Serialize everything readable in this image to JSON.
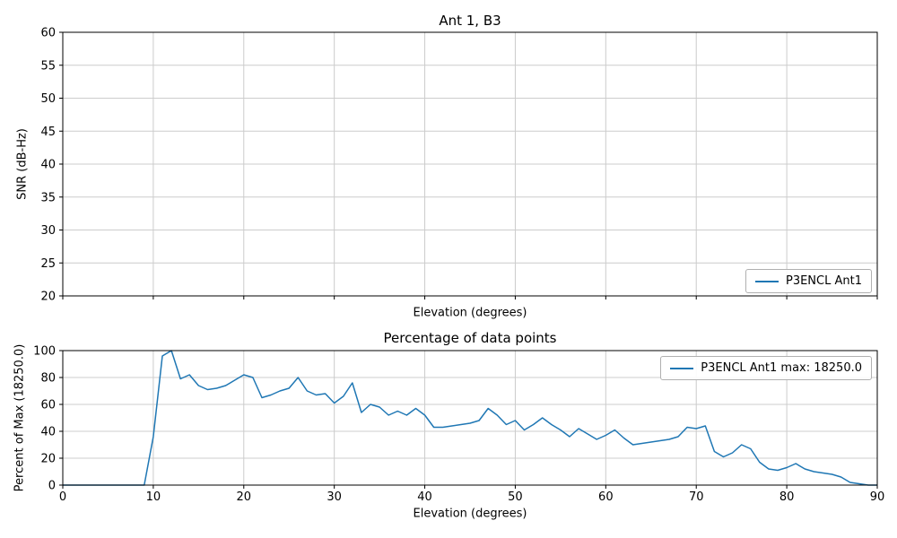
{
  "figure": {
    "background_color": "#ffffff",
    "line_color": "#1f77b4",
    "grid_color": "#cccccc",
    "frame_color": "#000000"
  },
  "chart_data": [
    {
      "type": "line",
      "title": "Ant 1, B3",
      "xlabel": "Elevation (degrees)",
      "ylabel": "SNR (dB-Hz)",
      "xlim": [
        0,
        90
      ],
      "ylim": [
        20,
        60
      ],
      "xticks": [
        0,
        10,
        20,
        30,
        40,
        50,
        60,
        70,
        80,
        90
      ],
      "yticks": [
        20,
        25,
        30,
        35,
        40,
        45,
        50,
        55,
        60
      ],
      "show_xtick_labels": false,
      "grid": true,
      "legend": {
        "position": "lower right",
        "entries": [
          {
            "label": "P3ENCL Ant1",
            "color": "#1f77b4"
          }
        ]
      },
      "series": [
        {
          "name": "P3ENCL Ant1",
          "color": "#1f77b4",
          "x": [],
          "y": []
        }
      ]
    },
    {
      "type": "line",
      "title": "Percentage of data points",
      "xlabel": "Elevation (degrees)",
      "ylabel": "Percent of Max (18250.0)",
      "max_value": 18250.0,
      "xlim": [
        0,
        90
      ],
      "ylim": [
        0,
        100
      ],
      "xticks": [
        0,
        10,
        20,
        30,
        40,
        50,
        60,
        70,
        80,
        90
      ],
      "yticks": [
        0,
        20,
        40,
        60,
        80,
        100
      ],
      "show_xtick_labels": true,
      "grid": true,
      "legend": {
        "position": "upper right",
        "entries": [
          {
            "label": "P3ENCL Ant1 max: 18250.0",
            "color": "#1f77b4"
          }
        ]
      },
      "series": [
        {
          "name": "P3ENCL Ant1",
          "color": "#1f77b4",
          "x": [
            0,
            1,
            2,
            3,
            4,
            5,
            6,
            7,
            8,
            9,
            10,
            11,
            12,
            13,
            14,
            15,
            16,
            17,
            18,
            19,
            20,
            21,
            22,
            23,
            24,
            25,
            26,
            27,
            28,
            29,
            30,
            31,
            32,
            33,
            34,
            35,
            36,
            37,
            38,
            39,
            40,
            41,
            42,
            43,
            44,
            45,
            46,
            47,
            48,
            49,
            50,
            51,
            52,
            53,
            54,
            55,
            56,
            57,
            58,
            59,
            60,
            61,
            62,
            63,
            64,
            65,
            66,
            67,
            68,
            69,
            70,
            71,
            72,
            73,
            74,
            75,
            76,
            77,
            78,
            79,
            80,
            81,
            82,
            83,
            84,
            85,
            86,
            87,
            88,
            89,
            90
          ],
          "y": [
            0,
            0,
            0,
            0,
            0,
            0,
            0,
            0,
            0,
            0,
            36,
            96,
            100,
            79,
            82,
            74,
            71,
            72,
            74,
            78,
            82,
            80,
            65,
            67,
            70,
            72,
            80,
            70,
            67,
            68,
            61,
            66,
            76,
            54,
            60,
            58,
            52,
            55,
            52,
            57,
            52,
            43,
            43,
            44,
            45,
            46,
            48,
            57,
            52,
            45,
            48,
            41,
            45,
            50,
            45,
            41,
            36,
            42,
            38,
            34,
            37,
            41,
            35,
            30,
            31,
            32,
            33,
            34,
            36,
            43,
            42,
            44,
            25,
            21,
            24,
            30,
            27,
            17,
            12,
            11,
            13,
            16,
            12,
            10,
            9,
            8,
            6,
            2,
            1,
            0,
            0
          ]
        }
      ]
    }
  ]
}
